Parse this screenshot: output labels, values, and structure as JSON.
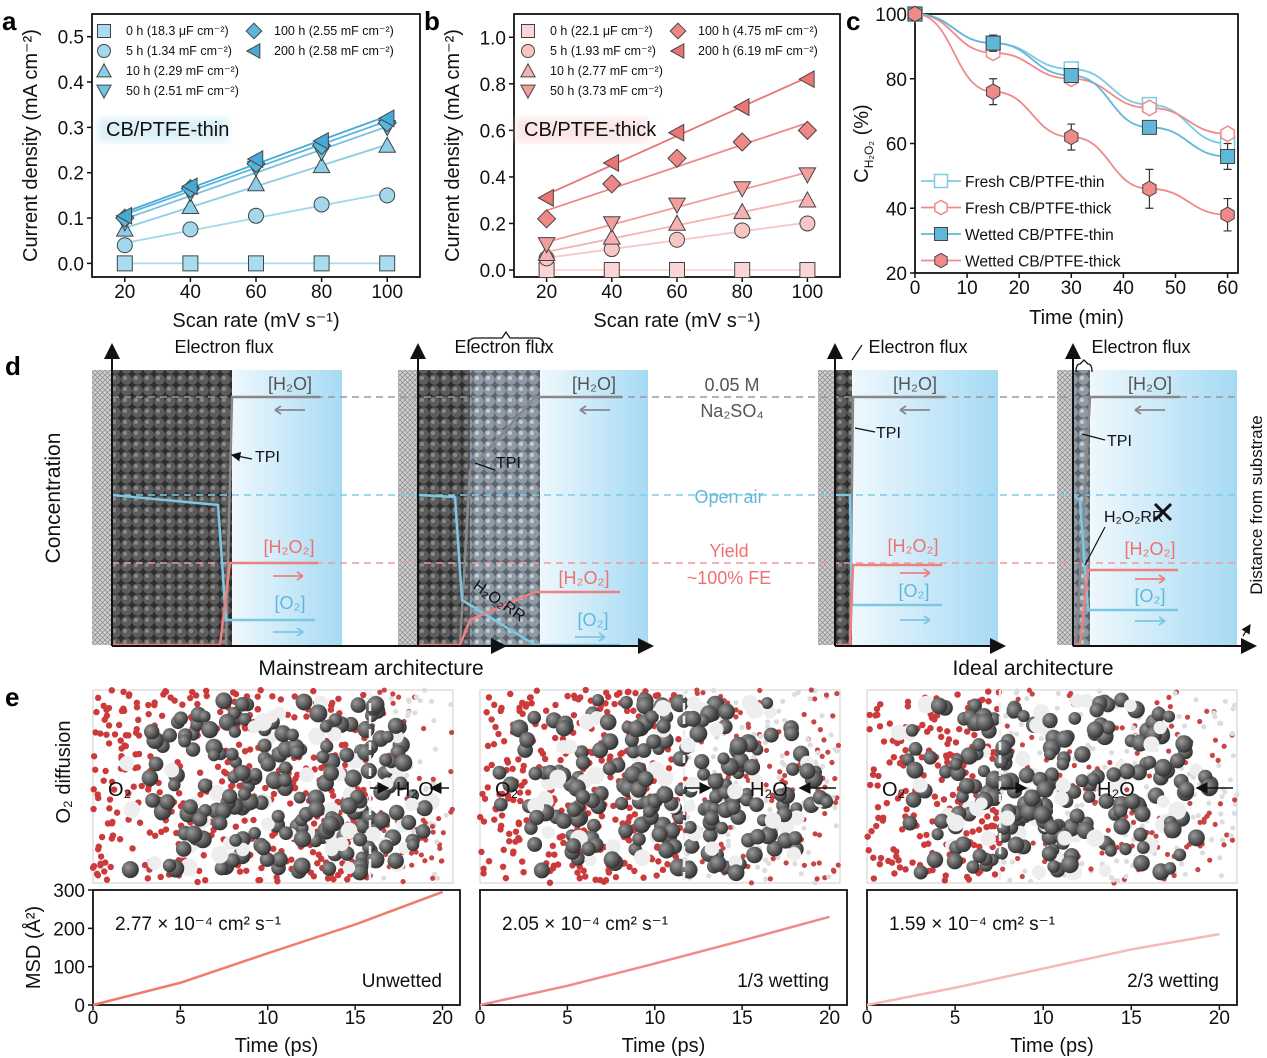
{
  "panel_labels": {
    "a": "a",
    "b": "b",
    "c": "c",
    "d": "d",
    "e": "e"
  },
  "colors": {
    "blue": "#5fb8dc",
    "blue_light": "#a9dcef",
    "red": "#ee7b7b",
    "red_light": "#f8c9c9",
    "gray": "#8a8a8a",
    "cyan_dash": "#7fcbe6",
    "pink_dash": "#f19a9a"
  },
  "chart_data": [
    {
      "id": "a",
      "type": "scatter",
      "fit_lines": true,
      "xlabel": "Scan rate (mV s⁻¹)",
      "ylabel": "Current density (mA cm⁻²)",
      "annotation": "CB/PTFE-thin",
      "xlim": [
        10,
        110
      ],
      "ylim": [
        -0.03,
        0.55
      ],
      "xticks": [
        20,
        40,
        60,
        80,
        100
      ],
      "yticks": [
        "0.0",
        "0.1",
        "0.2",
        "0.3",
        "0.4",
        "0.5"
      ],
      "legend_position": "top-left",
      "x": [
        20,
        40,
        60,
        80,
        100
      ],
      "series": [
        {
          "name": "0 h (18.3 μF cm⁻²)",
          "marker": "square",
          "color": "#a9dcef",
          "values": [
            0,
            0,
            0,
            0,
            0
          ]
        },
        {
          "name": "5 h (1.34 mF cm⁻²)",
          "marker": "circle",
          "color": "#a2d7ec",
          "values": [
            0.04,
            0.075,
            0.105,
            0.13,
            0.15
          ]
        },
        {
          "name": "10 h (2.29 mF cm⁻²)",
          "marker": "triangle-up",
          "color": "#8ccde8",
          "values": [
            0.075,
            0.125,
            0.175,
            0.215,
            0.26
          ]
        },
        {
          "name": "50 h (2.51 mF cm⁻²)",
          "marker": "triangle-down",
          "color": "#74c2e2",
          "values": [
            0.09,
            0.155,
            0.21,
            0.245,
            0.3
          ]
        },
        {
          "name": "100 h (2.55 mF cm⁻²)",
          "marker": "diamond",
          "color": "#5bb6dc",
          "values": [
            0.1,
            0.165,
            0.22,
            0.26,
            0.31
          ]
        },
        {
          "name": "200 h (2.58 mF cm⁻²)",
          "marker": "triangle-left",
          "color": "#45aad5",
          "values": [
            0.105,
            0.17,
            0.23,
            0.27,
            0.32
          ]
        }
      ]
    },
    {
      "id": "b",
      "type": "scatter",
      "fit_lines": true,
      "xlabel": "Scan rate (mV s⁻¹)",
      "ylabel": "Current density (mA cm⁻²)",
      "annotation": "CB/PTFE-thick",
      "xlim": [
        10,
        110
      ],
      "ylim": [
        -0.03,
        1.1
      ],
      "xticks": [
        20,
        40,
        60,
        80,
        100
      ],
      "yticks": [
        "0.0",
        "0.2",
        "0.4",
        "0.6",
        "0.8",
        "1.0"
      ],
      "legend_position": "top-left",
      "x": [
        20,
        40,
        60,
        80,
        100
      ],
      "series": [
        {
          "name": "0 h (22.1 μF cm⁻²)",
          "marker": "square",
          "color": "#fbd5d5",
          "values": [
            0,
            0,
            0,
            0,
            0
          ]
        },
        {
          "name": "5 h (1.93 mF cm⁻²)",
          "marker": "circle",
          "color": "#f9c6c6",
          "values": [
            0.05,
            0.09,
            0.13,
            0.17,
            0.2
          ]
        },
        {
          "name": "10 h (2.77 mF cm⁻²)",
          "marker": "triangle-up",
          "color": "#f6b2b2",
          "values": [
            0.07,
            0.14,
            0.2,
            0.25,
            0.3
          ]
        },
        {
          "name": "50 h (3.73 mF cm⁻²)",
          "marker": "triangle-down",
          "color": "#f39d9d",
          "values": [
            0.11,
            0.2,
            0.28,
            0.35,
            0.41
          ]
        },
        {
          "name": "100 h (4.75 mF cm⁻²)",
          "marker": "diamond",
          "color": "#ef8787",
          "values": [
            0.22,
            0.37,
            0.48,
            0.55,
            0.6
          ]
        },
        {
          "name": "200 h (6.19 mF cm⁻²)",
          "marker": "triangle-left",
          "color": "#eb7575",
          "values": [
            0.31,
            0.46,
            0.59,
            0.7,
            0.82
          ]
        }
      ]
    },
    {
      "id": "c",
      "type": "line",
      "xlabel": "Time (min)",
      "ylabel": "C",
      "ylabel_sub": "H₂O₂",
      "ylabel_unit": " (%)",
      "xlim": [
        0,
        62
      ],
      "ylim": [
        20,
        100
      ],
      "xticks": [
        0,
        10,
        20,
        30,
        40,
        50,
        60
      ],
      "yticks": [
        20,
        40,
        60,
        80,
        100
      ],
      "legend_position": "bottom-left",
      "x": [
        0,
        15,
        30,
        45,
        60
      ],
      "series": [
        {
          "name": "Fresh CB/PTFE-thin",
          "marker": "square-open",
          "color": "#7ccbe3",
          "values": [
            100,
            91,
            83,
            72,
            60
          ],
          "err": [
            0,
            1.5,
            1.5,
            2,
            2
          ]
        },
        {
          "name": "Fresh CB/PTFE-thick",
          "marker": "hexagon-open",
          "color": "#f08a8a",
          "values": [
            100,
            88,
            80,
            71,
            63
          ],
          "err": [
            0,
            1.5,
            1,
            1.5,
            1.5
          ]
        },
        {
          "name": "Wetted CB/PTFE-thin",
          "marker": "square",
          "color": "#5fb8dc",
          "values": [
            100,
            91,
            81,
            65,
            56
          ],
          "err": [
            0,
            2.5,
            2,
            2,
            4
          ]
        },
        {
          "name": "Wetted CB/PTFE-thick",
          "marker": "hexagon",
          "color": "#f08a8a",
          "values": [
            100,
            76,
            62,
            46,
            38
          ],
          "err": [
            0,
            4,
            4,
            6,
            5
          ]
        }
      ]
    },
    {
      "id": "e1",
      "type": "line",
      "xlabel": "Time (ps)",
      "ylabel": "MSD (Å²)",
      "xlim": [
        0,
        21
      ],
      "ylim": [
        0,
        300
      ],
      "xticks": [
        0,
        5,
        10,
        15,
        20
      ],
      "yticks": [
        0,
        100,
        200,
        300
      ],
      "annotation": "2.77 × 10⁻⁴ cm² s⁻¹",
      "label": "Unwetted",
      "color": "#ee7b6b",
      "x": [
        0,
        5,
        10,
        15,
        20
      ],
      "values": [
        0,
        58,
        135,
        210,
        295
      ]
    },
    {
      "id": "e2",
      "type": "line",
      "xlabel": "Time (ps)",
      "xlim": [
        0,
        21
      ],
      "ylim": [
        0,
        300
      ],
      "xticks": [
        0,
        5,
        10,
        15,
        20
      ],
      "annotation": "2.05 × 10⁻⁴ cm² s⁻¹",
      "label": "1/3 wetting",
      "color": "#f08a86",
      "x": [
        0,
        5,
        10,
        15,
        20
      ],
      "values": [
        0,
        50,
        108,
        168,
        230
      ]
    },
    {
      "id": "e3",
      "type": "line",
      "xlabel": "Time (ps)",
      "xlim": [
        0,
        21
      ],
      "ylim": [
        0,
        300
      ],
      "xticks": [
        0,
        5,
        10,
        15,
        20
      ],
      "annotation": "1.59 × 10⁻⁴ cm² s⁻¹",
      "label": "2/3 wetting",
      "color": "#f6b8b8",
      "x": [
        0,
        5,
        10,
        15,
        20
      ],
      "values": [
        0,
        45,
        95,
        145,
        185
      ]
    }
  ],
  "diagram_d": {
    "ylabel": "Concentration",
    "right_axis_label": "Distance from substrate",
    "electron_flux": "Electron flux",
    "h2o": "[H₂O]",
    "h2o2": "[H₂O₂]",
    "o2": "[O₂]",
    "tpi": "TPI",
    "h2o2rr": "H₂O₂RR",
    "electrolyte_line1": "0.05 M",
    "electrolyte_line2": "Na₂SO₄",
    "open_air": "Open air",
    "yield_line1": "Yield",
    "yield_line2": "~100% FE",
    "mainstream": "Mainstream architecture",
    "ideal": "Ideal architecture",
    "blocked_icon": "x-mark-icon"
  },
  "panel_e_images": {
    "ylabel": "O₂ diffusion",
    "o2": "O₂",
    "h2o": "H₂O"
  }
}
